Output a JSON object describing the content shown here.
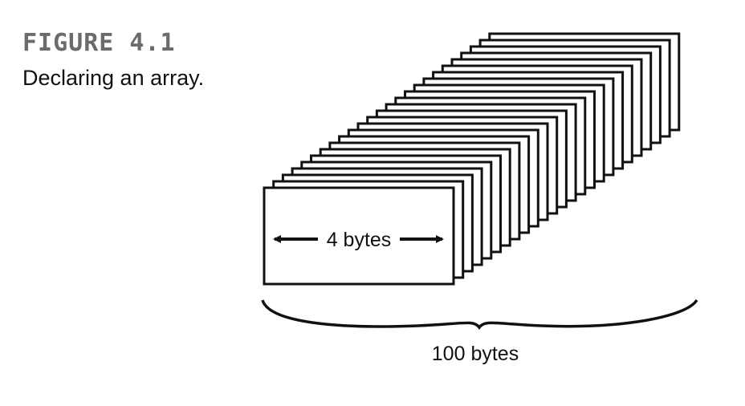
{
  "figure": {
    "label": "FIGURE 4.1",
    "caption": "Declaring an array."
  },
  "diagram": {
    "element_label": "4 bytes",
    "total_label": "100 bytes",
    "element_count": 25
  }
}
